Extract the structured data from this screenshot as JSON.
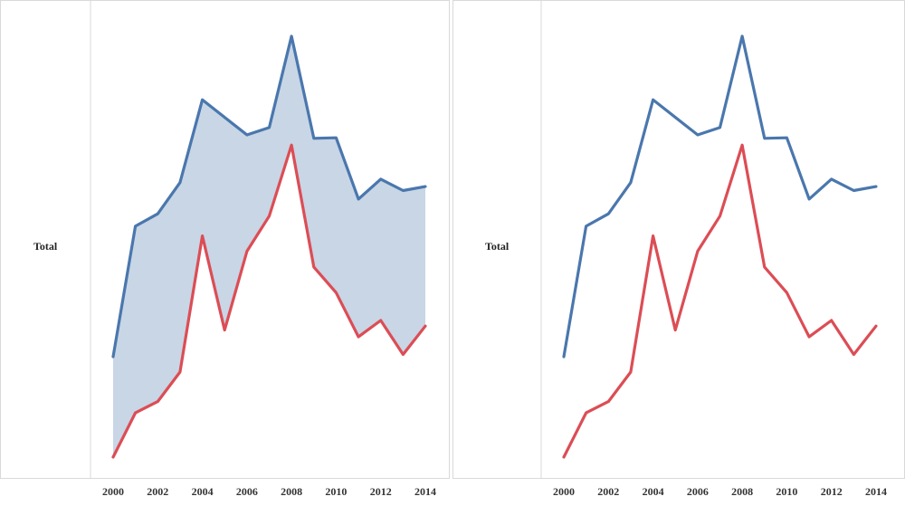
{
  "row_label": "Total",
  "colors": {
    "upper": "#4a77ad",
    "lower": "#dc4d55",
    "band": "#c8d6e6",
    "axis": "#d9d9d9"
  },
  "chart_data": [
    {
      "type": "area",
      "row_label": "Total",
      "x": [
        2000,
        2001,
        2002,
        2003,
        2004,
        2005,
        2006,
        2007,
        2008,
        2009,
        2010,
        2011,
        2012,
        2013,
        2014
      ],
      "xticks": [
        "2000",
        "2002",
        "2004",
        "2006",
        "2008",
        "2010",
        "2012",
        "2014"
      ],
      "series": [
        {
          "values": [
            23.5,
            46.5,
            48.7,
            54.2,
            68.8,
            65.7,
            62.6,
            63.9,
            80.0,
            62.0,
            62.1,
            51.3,
            54.8,
            52.8,
            53.5
          ]
        },
        {
          "values": [
            5.8,
            13.6,
            15.6,
            20.8,
            44.8,
            28.2,
            42.1,
            48.3,
            60.8,
            39.3,
            34.8,
            27.0,
            29.9,
            23.9,
            28.9
          ]
        }
      ],
      "fill_between": true,
      "ylim": [
        0,
        85
      ],
      "grid": false
    },
    {
      "type": "line",
      "row_label": "Total",
      "x": [
        2000,
        2001,
        2002,
        2003,
        2004,
        2005,
        2006,
        2007,
        2008,
        2009,
        2010,
        2011,
        2012,
        2013,
        2014
      ],
      "xticks": [
        "2000",
        "2002",
        "2004",
        "2006",
        "2008",
        "2010",
        "2012",
        "2014"
      ],
      "series": [
        {
          "values": [
            23.5,
            46.5,
            48.7,
            54.2,
            68.8,
            65.7,
            62.6,
            63.9,
            80.0,
            62.0,
            62.1,
            51.3,
            54.8,
            52.8,
            53.5
          ]
        },
        {
          "values": [
            5.8,
            13.6,
            15.6,
            20.8,
            44.8,
            28.2,
            42.1,
            48.3,
            60.8,
            39.3,
            34.8,
            27.0,
            29.9,
            23.9,
            28.9
          ]
        }
      ],
      "fill_between": false,
      "ylim": [
        0,
        85
      ],
      "grid": false
    }
  ]
}
